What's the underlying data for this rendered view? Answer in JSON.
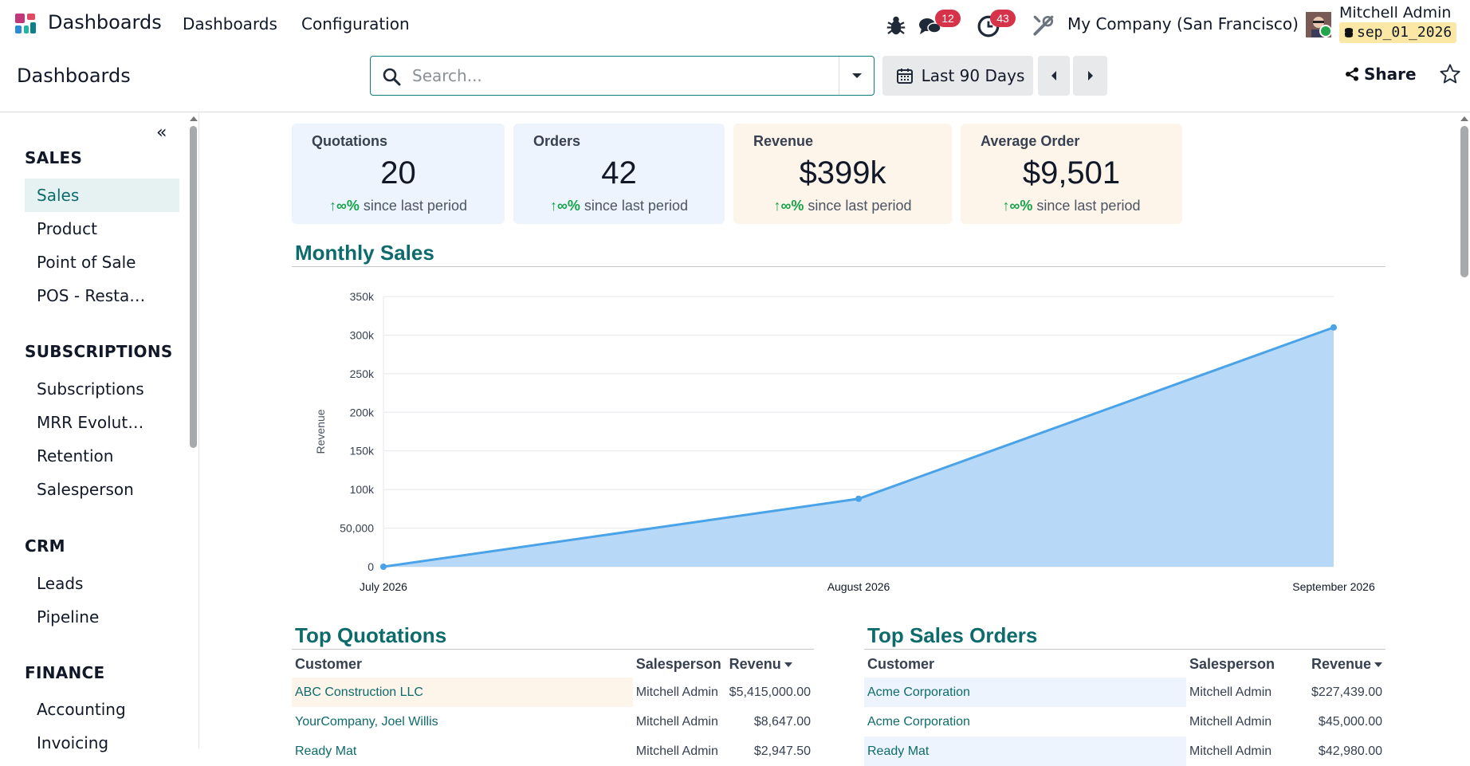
{
  "navbar": {
    "brand": "Dashboards",
    "menu": [
      "Dashboards",
      "Configuration"
    ],
    "messages_count": "12",
    "activities_count": "43",
    "company": "My Company (San Francisco)",
    "user_name": "Mitchell Admin",
    "database": "sep_01_2026"
  },
  "control": {
    "title": "Dashboards",
    "search_placeholder": "Search...",
    "date_filter": "Last 90 Days",
    "share_label": "Share"
  },
  "sidebar": {
    "sections": [
      {
        "title": "SALES",
        "items": [
          "Sales",
          "Product",
          "Point of Sale",
          "POS - Resta…"
        ]
      },
      {
        "title": "SUBSCRIPTIONS",
        "items": [
          "Subscriptions",
          "MRR Evolut…",
          "Retention",
          "Salesperson"
        ]
      },
      {
        "title": "CRM",
        "items": [
          "Leads",
          "Pipeline"
        ]
      },
      {
        "title": "FINANCE",
        "items": [
          "Accounting",
          "Invoicing"
        ]
      }
    ],
    "active_item": "Sales"
  },
  "kpis": [
    {
      "label": "Quotations",
      "value": "20",
      "trend": "∞%",
      "trend_text": "since last period"
    },
    {
      "label": "Orders",
      "value": "42",
      "trend": "∞%",
      "trend_text": "since last period"
    },
    {
      "label": "Revenue",
      "value": "$399k",
      "trend": "∞%",
      "trend_text": "since last period"
    },
    {
      "label": "Average Order",
      "value": "$9,501",
      "trend": "∞%",
      "trend_text": "since last period"
    }
  ],
  "monthly_sales": {
    "title": "Monthly Sales"
  },
  "chart_data": {
    "type": "area",
    "title": "Monthly Sales",
    "xlabel": "",
    "ylabel": "Revenue",
    "categories": [
      "July 2026",
      "August 2026",
      "September 2026"
    ],
    "series": [
      {
        "values": [
          0,
          88000,
          310000
        ]
      }
    ],
    "ylim": [
      0,
      350000
    ],
    "yticks": [
      0,
      50000,
      100000,
      150000,
      200000,
      250000,
      300000,
      350000
    ],
    "ytick_labels": [
      "0",
      "50,000",
      "100k",
      "150k",
      "200k",
      "250k",
      "300k",
      "350k"
    ],
    "grid": true,
    "colors": {
      "line": "#4aa3e8",
      "fill": "#b7d9f7"
    }
  },
  "top_quotations": {
    "title": "Top Quotations",
    "columns": [
      "Customer",
      "Salesperson",
      "Revenu"
    ],
    "rows": [
      [
        "ABC Construction LLC",
        "Mitchell Admin",
        "$5,415,000.00"
      ],
      [
        "YourCompany, Joel Willis",
        "Mitchell Admin",
        "$8,647.00"
      ],
      [
        "Ready Mat",
        "Mitchell Admin",
        "$2,947.50"
      ]
    ]
  },
  "top_sales_orders": {
    "title": "Top Sales Orders",
    "columns": [
      "Customer",
      "Salesperson",
      "Revenue"
    ],
    "rows": [
      [
        "Acme Corporation",
        "Mitchell Admin",
        "$227,439.00"
      ],
      [
        "Acme Corporation",
        "Mitchell Admin",
        "$45,000.00"
      ],
      [
        "Ready Mat",
        "Mitchell Admin",
        "$42,980.00"
      ]
    ]
  }
}
